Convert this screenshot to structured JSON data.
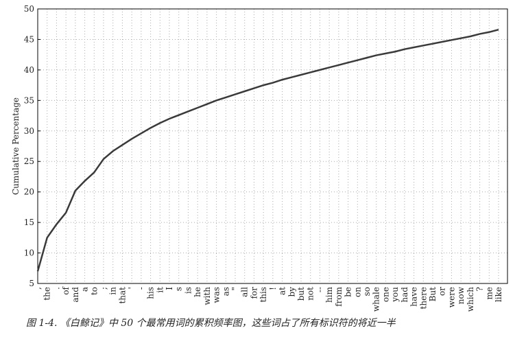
{
  "chart_data": {
    "type": "line",
    "ylabel": "Cumulative Percentage",
    "caption": "图 1-4. 《白鲸记》中 50 个最常用词的累积频率图，这些词占了所有标识符的将近一半",
    "categories": [
      ",",
      "the",
      ".",
      "of",
      "and",
      "a",
      "to",
      ";",
      "in",
      "that",
      "'",
      "-",
      "his",
      "it",
      "I",
      "s",
      "is",
      "he",
      "with",
      "was",
      "as",
      "\"",
      "all",
      "for",
      "this",
      "!",
      "at",
      "by",
      "but",
      "not",
      "--",
      "him",
      "from",
      "be",
      "on",
      "so",
      "whale",
      "one",
      "you",
      "had",
      "have",
      "there",
      "But",
      "or",
      "were",
      "now",
      "which",
      "?",
      "me",
      "like"
    ],
    "series": [
      {
        "name": "Cumulative Percentage",
        "color": "#3a3a3a",
        "values": [
          7,
          12.5,
          14.7,
          16.6,
          20.2,
          21.8,
          23.2,
          25.4,
          26.7,
          27.7,
          28.7,
          29.6,
          30.5,
          31.3,
          32,
          32.6,
          33.2,
          33.8,
          34.4,
          35,
          35.5,
          36,
          36.5,
          37,
          37.5,
          37.9,
          38.4,
          38.8,
          39.2,
          39.6,
          40,
          40.4,
          40.8,
          41.2,
          41.6,
          42,
          42.4,
          42.7,
          43,
          43.4,
          43.7,
          44,
          44.3,
          44.6,
          44.9,
          45.2,
          45.5,
          45.9,
          46.2,
          46.6
        ]
      }
    ],
    "ylim": [
      5,
      50
    ],
    "yticks": [
      5,
      10,
      15,
      20,
      25,
      30,
      35,
      40,
      45,
      50
    ],
    "grid": true
  }
}
